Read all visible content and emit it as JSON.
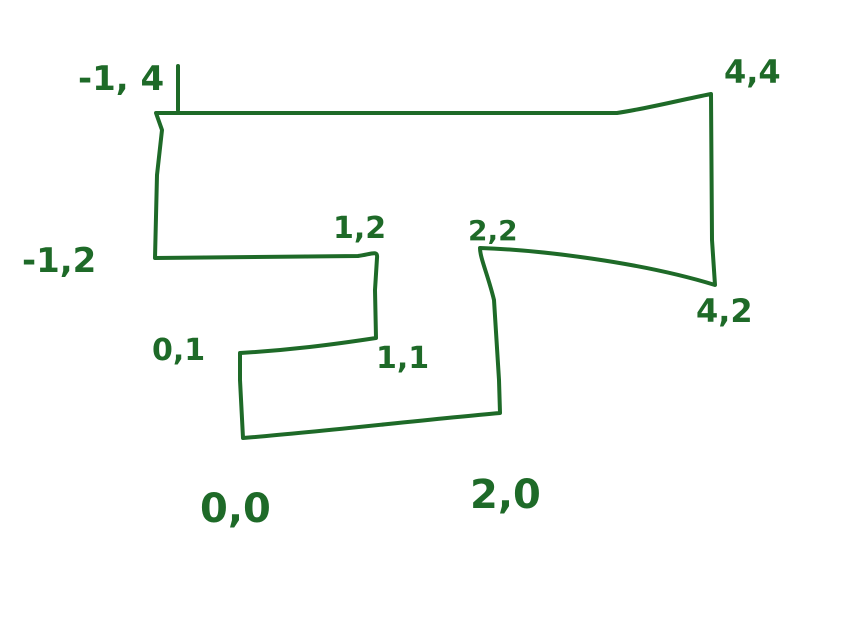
{
  "ink_color": "#1e6a28",
  "background_color": "#ffffff",
  "points": [
    {
      "id": "p-neg1-4",
      "x": -1,
      "y": 4,
      "label": "-1, 4"
    },
    {
      "id": "p-4-4",
      "x": 4,
      "y": 4,
      "label": "4,4"
    },
    {
      "id": "p-neg1-2",
      "x": -1,
      "y": 2,
      "label": "-1,2"
    },
    {
      "id": "p-1-2",
      "x": 1,
      "y": 2,
      "label": "1,2"
    },
    {
      "id": "p-2-2",
      "x": 2,
      "y": 2,
      "label": "2,2"
    },
    {
      "id": "p-4-2",
      "x": 4,
      "y": 2,
      "label": "4,2"
    },
    {
      "id": "p-0-1",
      "x": 0,
      "y": 1,
      "label": "0,1"
    },
    {
      "id": "p-1-1",
      "x": 1,
      "y": 1,
      "label": "1,1"
    },
    {
      "id": "p-0-0",
      "x": 0,
      "y": 0,
      "label": "0,0"
    },
    {
      "id": "p-2-0",
      "x": 2,
      "y": 0,
      "label": "2,0"
    }
  ]
}
